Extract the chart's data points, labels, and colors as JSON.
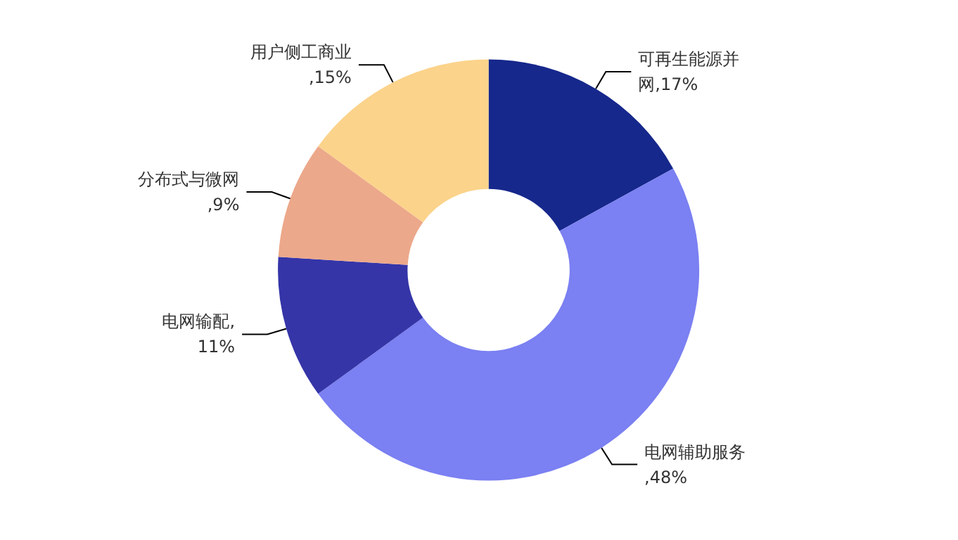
{
  "chart_data": {
    "type": "donut",
    "categories": [
      "可再生能源并网",
      "电网辅助服务",
      "电网输配",
      "分布式与微网",
      "用户侧工商业"
    ],
    "values": [
      17,
      48,
      11,
      9,
      15
    ],
    "colors": [
      "#16288c",
      "#7b80f2",
      "#3535a8",
      "#eca88a",
      "#fbd38b"
    ],
    "value_labels": [
      ",17%",
      ",48%",
      ",11%",
      ",9%",
      ",15%"
    ],
    "legend": false
  }
}
